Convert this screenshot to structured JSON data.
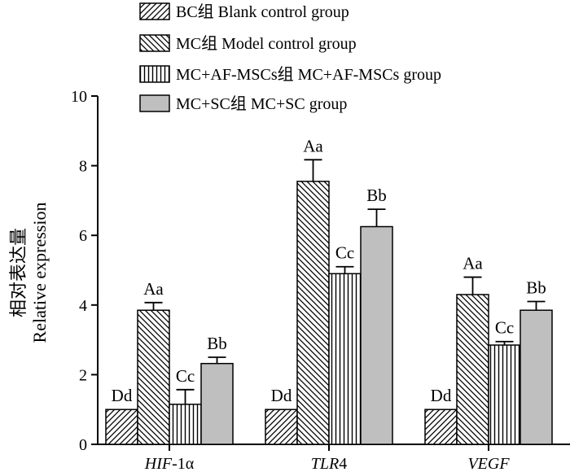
{
  "chart_data": {
    "type": "bar",
    "categories": [
      "HIF-1α",
      "TLR4",
      "VEGF"
    ],
    "category_labels": [
      {
        "italic": "HIF",
        "plain": "-1α"
      },
      {
        "italic": "TLR",
        "plain": "4"
      },
      {
        "italic": "VEGF",
        "plain": ""
      }
    ],
    "ylabel_cn": "相对表达量",
    "ylabel_en": "Relative expression",
    "ylim": [
      0,
      10
    ],
    "yticks": [
      0,
      2,
      4,
      6,
      8,
      10
    ],
    "legend_position": "top",
    "series": [
      {
        "name": "BC组 Blank control group",
        "pattern": "diag-up",
        "values": [
          1.0,
          1.0,
          1.0
        ],
        "errors": [
          0,
          0,
          0
        ],
        "labels": [
          "Dd",
          "Dd",
          "Dd"
        ]
      },
      {
        "name": "MC组 Model control group",
        "pattern": "diag-down",
        "values": [
          3.85,
          7.55,
          4.3
        ],
        "errors": [
          0.22,
          0.62,
          0.5
        ],
        "labels": [
          "Aa",
          "Aa",
          "Aa"
        ]
      },
      {
        "name": "MC+AF-MSCs组 MC+AF-MSCs group",
        "pattern": "vertical",
        "values": [
          1.15,
          4.9,
          2.85
        ],
        "errors": [
          0.42,
          0.2,
          0.1
        ],
        "labels": [
          "Cc",
          "Cc",
          "Cc"
        ]
      },
      {
        "name": "MC+SC组 MC+SC group",
        "pattern": "gray",
        "values": [
          2.32,
          6.25,
          3.85
        ],
        "errors": [
          0.18,
          0.5,
          0.25
        ],
        "labels": [
          "Bb",
          "Bb",
          "Bb"
        ]
      }
    ]
  }
}
